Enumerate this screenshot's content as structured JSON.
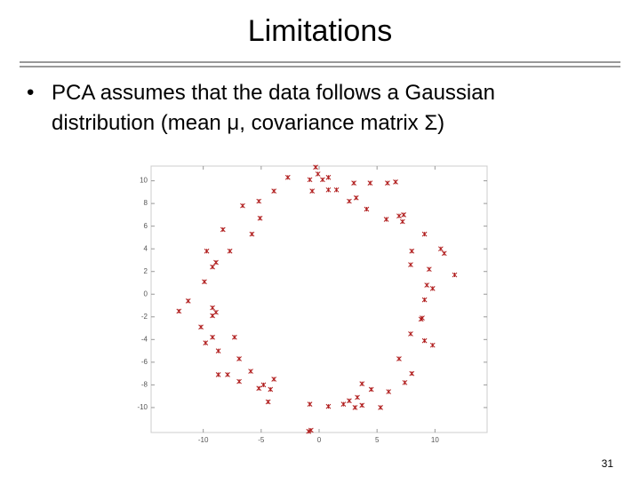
{
  "slide": {
    "title": "Limitations",
    "bullet": "PCA assumes that the data follows a Gaussian distribution (mean μ, covariance matrix Σ)",
    "page_number": 31
  },
  "chart_data": {
    "type": "scatter",
    "color": "#b01c1c",
    "x": [
      -0.3,
      -0.1,
      -2.7,
      -0.8,
      0.3,
      0.8,
      -0.6,
      0.8,
      1.5,
      3.0,
      4.4,
      5.9,
      6.6,
      -3.9,
      2.6,
      3.2,
      4.1,
      -5.2,
      -6.6,
      -5.1,
      -5.8,
      -8.3,
      5.8,
      6.9,
      7.3,
      7.2,
      9.1,
      10.5,
      10.8,
      8.0,
      -7.7,
      -9.7,
      -8.9,
      -9.2,
      7.9,
      9.5,
      11.7,
      -9.9,
      9.3,
      9.8,
      -11.3,
      -12.1,
      -9.2,
      -8.9,
      -9.2,
      9.1,
      8.9,
      8.8,
      -10.2,
      -9.2,
      -7.3,
      -9.8,
      -8.7,
      7.9,
      9.1,
      9.8,
      6.9,
      -6.9,
      8.0,
      7.4,
      -8.7,
      -7.9,
      -5.9,
      -6.9,
      -4.8,
      -4.2,
      -3.9,
      6.0,
      3.7,
      4.5,
      3.3,
      -0.8,
      0.8,
      2.1,
      2.6,
      3.1,
      3.7,
      5.3,
      -0.7,
      -0.9,
      -4.4,
      -5.2
    ],
    "values": [
      11.2,
      10.6,
      10.3,
      10.1,
      10.1,
      10.3,
      9.1,
      9.2,
      9.2,
      9.8,
      9.8,
      9.8,
      9.9,
      9.1,
      8.2,
      8.5,
      7.5,
      8.2,
      7.8,
      6.7,
      5.3,
      5.7,
      6.6,
      6.9,
      7.0,
      6.4,
      5.3,
      4.0,
      3.6,
      3.8,
      3.8,
      3.8,
      2.8,
      2.4,
      2.6,
      2.2,
      1.7,
      1.1,
      0.8,
      0.5,
      -0.6,
      -1.5,
      -1.2,
      -1.6,
      -1.9,
      -0.5,
      -2.1,
      -2.2,
      -2.9,
      -3.8,
      -3.8,
      -4.3,
      -5.0,
      -3.5,
      -4.1,
      -4.5,
      -5.7,
      -5.7,
      -7.0,
      -7.8,
      -7.1,
      -7.1,
      -6.8,
      -7.7,
      -8.0,
      -8.4,
      -7.5,
      -8.6,
      -7.9,
      -8.4,
      -9.1,
      -9.7,
      -9.9,
      -9.7,
      -9.4,
      -10.0,
      -9.8,
      -10.0,
      -12.0,
      -12.1,
      -9.5,
      -8.3
    ],
    "xlim": [
      -14.5,
      14.5
    ],
    "ylim": [
      -12.2,
      11.3
    ],
    "xticks": [
      -10,
      -5,
      0,
      5,
      10
    ],
    "yticks": [
      10,
      8,
      6,
      4,
      2,
      0,
      -2,
      -4,
      -6,
      -8,
      -10
    ]
  }
}
